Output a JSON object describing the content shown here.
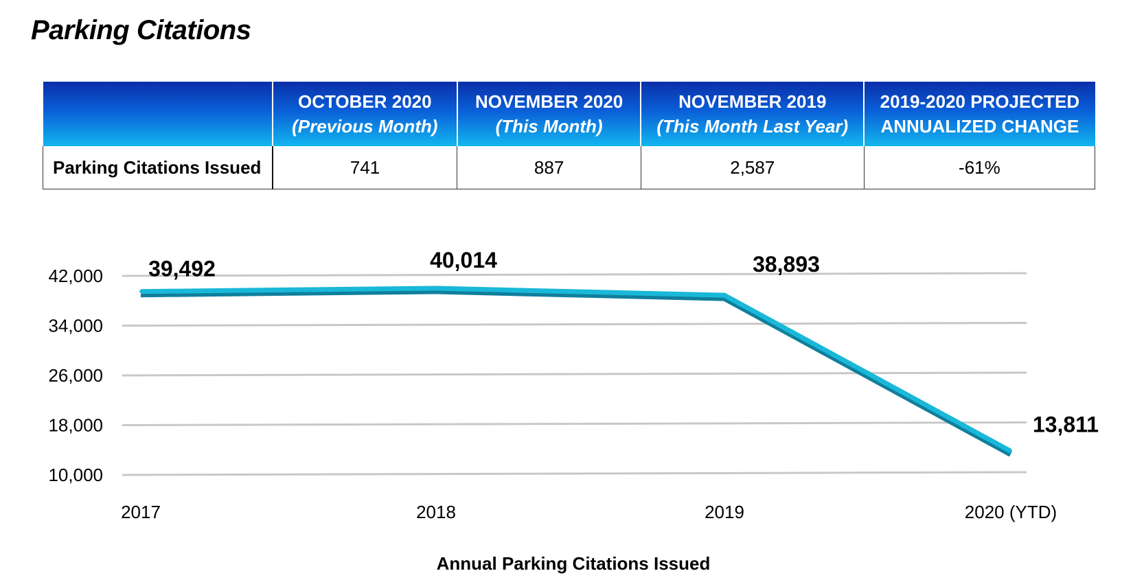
{
  "title": "Parking Citations",
  "table": {
    "headers": [
      {
        "main": "",
        "sub": ""
      },
      {
        "main": "OCTOBER 2020",
        "sub": "(Previous Month)"
      },
      {
        "main": "NOVEMBER 2020",
        "sub": "(This Month)"
      },
      {
        "main": "NOVEMBER 2019",
        "sub": "(This Month Last Year)"
      },
      {
        "main": "2019-2020 PROJECTED",
        "sub": "ANNUALIZED CHANGE"
      }
    ],
    "row": {
      "label": "Parking Citations Issued",
      "values": [
        "741",
        "887",
        "2,587",
        "-61%"
      ]
    }
  },
  "chart_data": {
    "type": "line",
    "title": "",
    "xlabel": "Annual Parking Citations Issued",
    "ylabel": "",
    "categories": [
      "2017",
      "2018",
      "2019",
      "2020 (YTD)"
    ],
    "series": [
      {
        "values": [
          39492,
          40014,
          38893,
          13811
        ],
        "labels": [
          "39,492",
          "40,014",
          "38,893",
          "13,811"
        ]
      }
    ],
    "yticks": [
      10000,
      18000,
      26000,
      34000,
      42000
    ],
    "ytick_labels": [
      "10,000",
      "18,000",
      "26,000",
      "34,000",
      "42,000"
    ],
    "ylim": [
      10000,
      42000
    ],
    "grid": true,
    "legend": "none",
    "colors": {
      "line": "#1ab8d8",
      "line_edge": "#0f7f9c",
      "grid": "#c8c8c8"
    }
  }
}
